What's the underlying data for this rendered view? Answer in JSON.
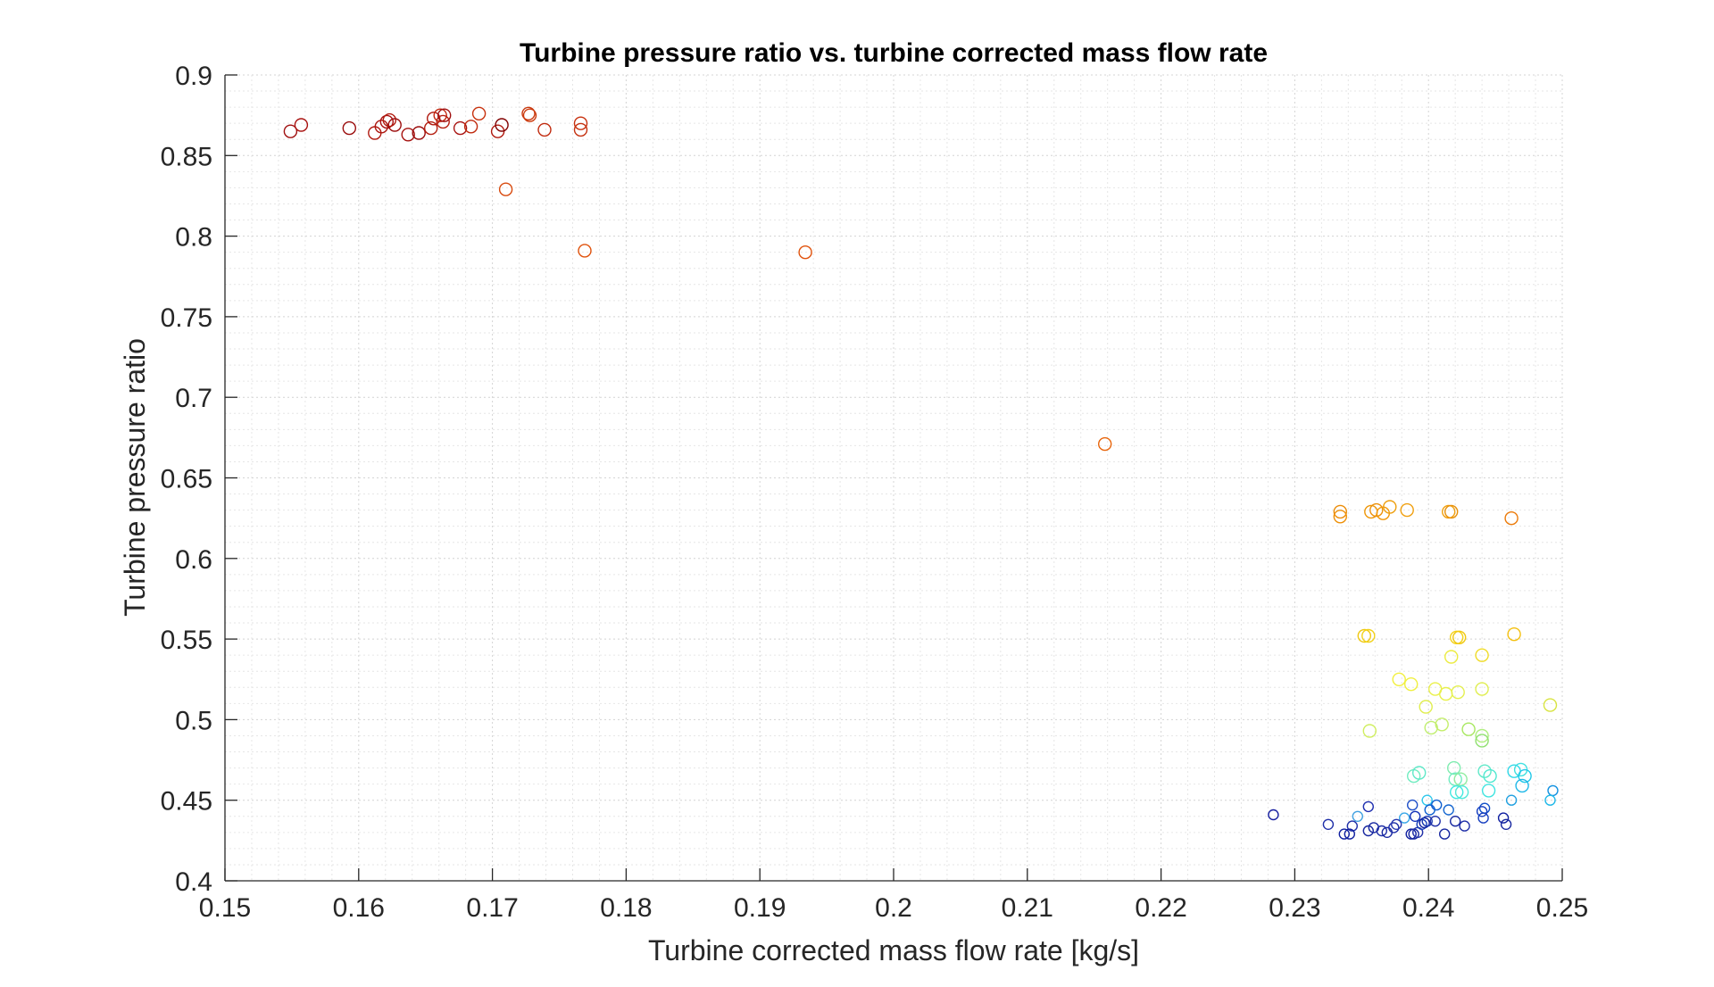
{
  "chart_data": {
    "type": "scatter",
    "title": "Turbine pressure ratio vs. turbine corrected mass flow rate",
    "xlabel": "Turbine corrected mass flow rate [kg/s]",
    "ylabel": "Turbine pressure ratio",
    "xlim": [
      0.15,
      0.25
    ],
    "ylim": [
      0.4,
      0.9
    ],
    "xticks": [
      0.15,
      0.16,
      0.17,
      0.18,
      0.19,
      0.2,
      0.21,
      0.22,
      0.23,
      0.24,
      0.25
    ],
    "xtick_labels": [
      "0.15",
      "0.16",
      "0.17",
      "0.18",
      "0.19",
      "0.2",
      "0.21",
      "0.22",
      "0.23",
      "0.24",
      "0.25"
    ],
    "yticks": [
      0.4,
      0.45,
      0.5,
      0.55,
      0.6,
      0.65,
      0.7,
      0.75,
      0.8,
      0.85,
      0.9
    ],
    "ytick_labels": [
      "0.4",
      "0.45",
      "0.5",
      "0.55",
      "0.6",
      "0.65",
      "0.7",
      "0.75",
      "0.8",
      "0.85",
      "0.9"
    ],
    "grid": "on (major and minor, dotted)",
    "legend": "none",
    "colormap": "jet",
    "marker": "open circle",
    "points": [
      {
        "x": 0.1549,
        "y": 0.865,
        "color": "#a01010",
        "size": 7
      },
      {
        "x": 0.1557,
        "y": 0.869,
        "color": "#a81210",
        "size": 7
      },
      {
        "x": 0.1593,
        "y": 0.867,
        "color": "#9a0c0c",
        "size": 7
      },
      {
        "x": 0.1612,
        "y": 0.864,
        "color": "#b01a10",
        "size": 7
      },
      {
        "x": 0.1617,
        "y": 0.868,
        "color": "#ad1710",
        "size": 7
      },
      {
        "x": 0.1621,
        "y": 0.871,
        "color": "#a81010",
        "size": 7
      },
      {
        "x": 0.1623,
        "y": 0.872,
        "color": "#b21c10",
        "size": 7
      },
      {
        "x": 0.1627,
        "y": 0.869,
        "color": "#9c0e0e",
        "size": 7
      },
      {
        "x": 0.1637,
        "y": 0.863,
        "color": "#a61310",
        "size": 7
      },
      {
        "x": 0.1645,
        "y": 0.864,
        "color": "#9a0c0c",
        "size": 7
      },
      {
        "x": 0.1654,
        "y": 0.867,
        "color": "#b41f10",
        "size": 7
      },
      {
        "x": 0.1656,
        "y": 0.873,
        "color": "#b01a10",
        "size": 7
      },
      {
        "x": 0.1661,
        "y": 0.875,
        "color": "#c2260f",
        "size": 7
      },
      {
        "x": 0.1663,
        "y": 0.871,
        "color": "#b61f10",
        "size": 7
      },
      {
        "x": 0.1664,
        "y": 0.875,
        "color": "#a01010",
        "size": 7
      },
      {
        "x": 0.1676,
        "y": 0.867,
        "color": "#a81210",
        "size": 7
      },
      {
        "x": 0.1684,
        "y": 0.868,
        "color": "#c02a0e",
        "size": 7
      },
      {
        "x": 0.169,
        "y": 0.876,
        "color": "#c8320e",
        "size": 7
      },
      {
        "x": 0.1704,
        "y": 0.865,
        "color": "#b01a10",
        "size": 7
      },
      {
        "x": 0.1707,
        "y": 0.869,
        "color": "#800000",
        "size": 7
      },
      {
        "x": 0.1727,
        "y": 0.876,
        "color": "#c8380e",
        "size": 7
      },
      {
        "x": 0.1728,
        "y": 0.875,
        "color": "#cc3a0e",
        "size": 7
      },
      {
        "x": 0.1739,
        "y": 0.866,
        "color": "#c02a0e",
        "size": 7
      },
      {
        "x": 0.1766,
        "y": 0.87,
        "color": "#c8300e",
        "size": 7
      },
      {
        "x": 0.1766,
        "y": 0.866,
        "color": "#c4300e",
        "size": 7
      },
      {
        "x": 0.171,
        "y": 0.829,
        "color": "#d84a0e",
        "size": 7
      },
      {
        "x": 0.1769,
        "y": 0.791,
        "color": "#e0520c",
        "size": 7
      },
      {
        "x": 0.1934,
        "y": 0.79,
        "color": "#e0520c",
        "size": 7
      },
      {
        "x": 0.2158,
        "y": 0.671,
        "color": "#e8640a",
        "size": 7
      },
      {
        "x": 0.2334,
        "y": 0.629,
        "color": "#ec8c08",
        "size": 7
      },
      {
        "x": 0.2334,
        "y": 0.626,
        "color": "#ee9008",
        "size": 7
      },
      {
        "x": 0.2357,
        "y": 0.629,
        "color": "#ee9608",
        "size": 7
      },
      {
        "x": 0.2361,
        "y": 0.63,
        "color": "#ec9008",
        "size": 7
      },
      {
        "x": 0.2366,
        "y": 0.628,
        "color": "#f09608",
        "size": 7
      },
      {
        "x": 0.2371,
        "y": 0.632,
        "color": "#eea010",
        "size": 7
      },
      {
        "x": 0.2384,
        "y": 0.63,
        "color": "#f0a010",
        "size": 7
      },
      {
        "x": 0.2415,
        "y": 0.629,
        "color": "#f0a010",
        "size": 7
      },
      {
        "x": 0.2417,
        "y": 0.629,
        "color": "#e89008",
        "size": 7
      },
      {
        "x": 0.2462,
        "y": 0.625,
        "color": "#ec7a08",
        "size": 7
      },
      {
        "x": 0.2352,
        "y": 0.552,
        "color": "#f0c810",
        "size": 7
      },
      {
        "x": 0.2355,
        "y": 0.552,
        "color": "#f2d21a",
        "size": 7
      },
      {
        "x": 0.2421,
        "y": 0.551,
        "color": "#f4d21a",
        "size": 7
      },
      {
        "x": 0.2423,
        "y": 0.551,
        "color": "#f0c810",
        "size": 7
      },
      {
        "x": 0.2464,
        "y": 0.553,
        "color": "#f4c010",
        "size": 7
      },
      {
        "x": 0.2417,
        "y": 0.539,
        "color": "#ecec40",
        "size": 7
      },
      {
        "x": 0.244,
        "y": 0.54,
        "color": "#f0dc28",
        "size": 7
      },
      {
        "x": 0.2378,
        "y": 0.525,
        "color": "#f2f040",
        "size": 7
      },
      {
        "x": 0.2387,
        "y": 0.522,
        "color": "#f0f040",
        "size": 7
      },
      {
        "x": 0.2405,
        "y": 0.519,
        "color": "#eaf04a",
        "size": 7
      },
      {
        "x": 0.2413,
        "y": 0.516,
        "color": "#e8f04a",
        "size": 7
      },
      {
        "x": 0.2422,
        "y": 0.517,
        "color": "#e4f050",
        "size": 7
      },
      {
        "x": 0.244,
        "y": 0.519,
        "color": "#e0ee50",
        "size": 7
      },
      {
        "x": 0.2398,
        "y": 0.508,
        "color": "#e0ee50",
        "size": 7
      },
      {
        "x": 0.2491,
        "y": 0.509,
        "color": "#d8e440",
        "size": 7
      },
      {
        "x": 0.2356,
        "y": 0.493,
        "color": "#d0ee60",
        "size": 7
      },
      {
        "x": 0.2402,
        "y": 0.495,
        "color": "#c0ee70",
        "size": 7
      },
      {
        "x": 0.241,
        "y": 0.497,
        "color": "#c4ee6c",
        "size": 7
      },
      {
        "x": 0.243,
        "y": 0.494,
        "color": "#a8e860",
        "size": 7
      },
      {
        "x": 0.244,
        "y": 0.49,
        "color": "#b0ee80",
        "size": 7
      },
      {
        "x": 0.244,
        "y": 0.487,
        "color": "#90e070",
        "size": 7
      },
      {
        "x": 0.2389,
        "y": 0.465,
        "color": "#70ecc0",
        "size": 7
      },
      {
        "x": 0.2393,
        "y": 0.467,
        "color": "#60e8c8",
        "size": 7
      },
      {
        "x": 0.2419,
        "y": 0.47,
        "color": "#80ecb0",
        "size": 7
      },
      {
        "x": 0.242,
        "y": 0.463,
        "color": "#70ecc0",
        "size": 7
      },
      {
        "x": 0.2424,
        "y": 0.463,
        "color": "#90eca0",
        "size": 7
      },
      {
        "x": 0.2421,
        "y": 0.455,
        "color": "#40e8e0",
        "size": 7
      },
      {
        "x": 0.2425,
        "y": 0.455,
        "color": "#50e8d8",
        "size": 7
      },
      {
        "x": 0.2442,
        "y": 0.468,
        "color": "#60e8c8",
        "size": 7
      },
      {
        "x": 0.2446,
        "y": 0.465,
        "color": "#50e8d0",
        "size": 7
      },
      {
        "x": 0.2445,
        "y": 0.456,
        "color": "#40e4e0",
        "size": 7
      },
      {
        "x": 0.2464,
        "y": 0.468,
        "color": "#30d8e8",
        "size": 7
      },
      {
        "x": 0.2469,
        "y": 0.469,
        "color": "#40e0e0",
        "size": 7
      },
      {
        "x": 0.2472,
        "y": 0.465,
        "color": "#20c8e8",
        "size": 7
      },
      {
        "x": 0.247,
        "y": 0.459,
        "color": "#20b8e8",
        "size": 7
      },
      {
        "x": 0.2493,
        "y": 0.456,
        "color": "#1090e0",
        "size": 5.5
      },
      {
        "x": 0.2491,
        "y": 0.45,
        "color": "#20b8e8",
        "size": 5.5
      },
      {
        "x": 0.2462,
        "y": 0.45,
        "color": "#20a0e0",
        "size": 5.5
      },
      {
        "x": 0.2399,
        "y": 0.45,
        "color": "#30c8ec",
        "size": 5.5
      },
      {
        "x": 0.2406,
        "y": 0.447,
        "color": "#1060d0",
        "size": 5.5
      },
      {
        "x": 0.2388,
        "y": 0.447,
        "color": "#2050c8",
        "size": 5.5
      },
      {
        "x": 0.2401,
        "y": 0.444,
        "color": "#1060d0",
        "size": 5.5
      },
      {
        "x": 0.2415,
        "y": 0.444,
        "color": "#1868d0",
        "size": 5.5
      },
      {
        "x": 0.2442,
        "y": 0.445,
        "color": "#1050c8",
        "size": 5.5
      },
      {
        "x": 0.244,
        "y": 0.443,
        "color": "#1840c0",
        "size": 5.5
      },
      {
        "x": 0.2355,
        "y": 0.446,
        "color": "#2030b0",
        "size": 5.5
      },
      {
        "x": 0.2284,
        "y": 0.441,
        "color": "#1820a0",
        "size": 5.5
      },
      {
        "x": 0.2347,
        "y": 0.44,
        "color": "#40a0e0",
        "size": 5.5
      },
      {
        "x": 0.2382,
        "y": 0.439,
        "color": "#3aa8e8",
        "size": 5.5
      },
      {
        "x": 0.239,
        "y": 0.44,
        "color": "#1030b8",
        "size": 5.5
      },
      {
        "x": 0.2441,
        "y": 0.439,
        "color": "#1840c0",
        "size": 5.5
      },
      {
        "x": 0.2456,
        "y": 0.439,
        "color": "#1020a0",
        "size": 5.5
      },
      {
        "x": 0.2325,
        "y": 0.435,
        "color": "#2030a8",
        "size": 5.5
      },
      {
        "x": 0.2343,
        "y": 0.434,
        "color": "#2030a8",
        "size": 5.5
      },
      {
        "x": 0.2355,
        "y": 0.431,
        "color": "#1828a0",
        "size": 5.5
      },
      {
        "x": 0.2359,
        "y": 0.433,
        "color": "#1828a0",
        "size": 5.5
      },
      {
        "x": 0.2365,
        "y": 0.431,
        "color": "#2030a8",
        "size": 5.5
      },
      {
        "x": 0.2369,
        "y": 0.43,
        "color": "#1828a0",
        "size": 5.5
      },
      {
        "x": 0.2374,
        "y": 0.433,
        "color": "#2030a8",
        "size": 5.5
      },
      {
        "x": 0.2376,
        "y": 0.435,
        "color": "#2838b0",
        "size": 5.5
      },
      {
        "x": 0.2387,
        "y": 0.429,
        "color": "#1020a0",
        "size": 5.5
      },
      {
        "x": 0.2389,
        "y": 0.429,
        "color": "#1828a0",
        "size": 5.5
      },
      {
        "x": 0.2392,
        "y": 0.43,
        "color": "#2030a8",
        "size": 5.5
      },
      {
        "x": 0.2395,
        "y": 0.435,
        "color": "#1840b8",
        "size": 5.5
      },
      {
        "x": 0.2397,
        "y": 0.436,
        "color": "#1020a0",
        "size": 5.5
      },
      {
        "x": 0.2399,
        "y": 0.437,
        "color": "#1838b0",
        "size": 5.5
      },
      {
        "x": 0.2405,
        "y": 0.437,
        "color": "#2030a8",
        "size": 5.5
      },
      {
        "x": 0.2412,
        "y": 0.429,
        "color": "#1828a0",
        "size": 5.5
      },
      {
        "x": 0.242,
        "y": 0.437,
        "color": "#1828a0",
        "size": 5.5
      },
      {
        "x": 0.2427,
        "y": 0.434,
        "color": "#2030a8",
        "size": 5.5
      },
      {
        "x": 0.2458,
        "y": 0.435,
        "color": "#1828a0",
        "size": 5.5
      },
      {
        "x": 0.2341,
        "y": 0.429,
        "color": "#1020a0",
        "size": 5.5
      },
      {
        "x": 0.2337,
        "y": 0.429,
        "color": "#1020a0",
        "size": 5.5
      }
    ]
  }
}
